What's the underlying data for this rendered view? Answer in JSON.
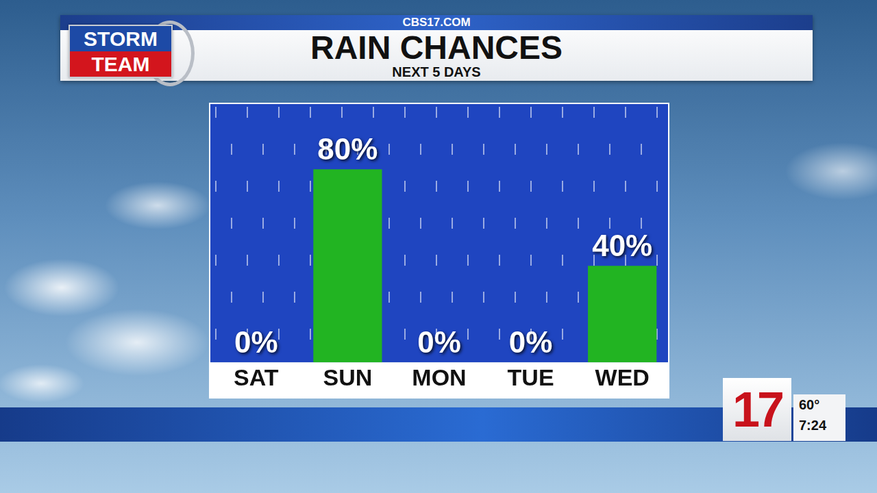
{
  "chart_data": {
    "type": "bar",
    "title": "RAIN CHANCES",
    "subtitle": "NEXT 5 DAYS",
    "categories": [
      "SAT",
      "SUN",
      "MON",
      "TUE",
      "WED"
    ],
    "values": [
      0,
      80,
      0,
      0,
      40
    ],
    "value_labels": [
      "0%",
      "80%",
      "0%",
      "0%",
      "40%"
    ],
    "color": "#22b422",
    "ylim": [
      0,
      107
    ],
    "grid": false,
    "data_labels": true,
    "tick_labels": "x"
  },
  "header": {
    "site": "CBS17.COM",
    "logo": [
      "STORM",
      "TEAM"
    ]
  },
  "station": {
    "channel": "17",
    "temperature": "60°",
    "time": "7:24"
  }
}
